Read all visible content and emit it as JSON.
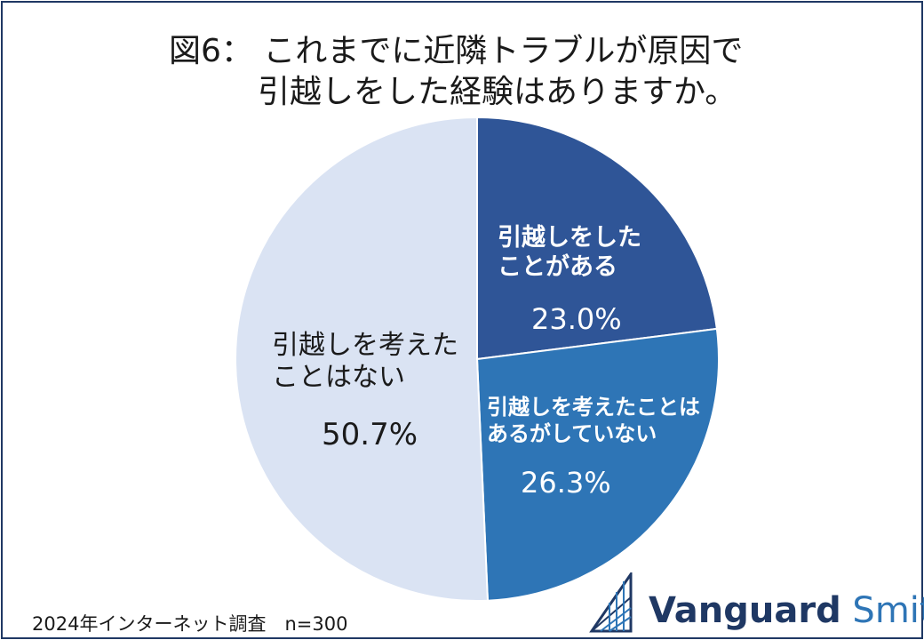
{
  "title_line1": "図6： これまでに近隣トラブルが原因で",
  "title_line2": "引越しをした経験はありますか。",
  "footer_note": "2024年インターネット調査　n=300",
  "brand": {
    "name_bold": "Vanguard",
    "name_light": "Smith"
  },
  "chart_data": {
    "type": "pie",
    "start_angle_deg": 0,
    "direction": "clockwise",
    "slices": [
      {
        "label_lines": [
          "引越しをした",
          "ことがある"
        ],
        "value": 23.0,
        "value_label": "23.0%",
        "color": "#2f5597",
        "text_color": "#ffffff"
      },
      {
        "label_lines": [
          "引越しを考えたことは",
          "あるがしていない"
        ],
        "value": 26.3,
        "value_label": "26.3%",
        "color": "#2e75b6",
        "text_color": "#ffffff"
      },
      {
        "label_lines": [
          "引越しを考えた",
          "ことはない"
        ],
        "value": 50.7,
        "value_label": "50.7%",
        "color": "#dae3f3",
        "text_color": "#1a1a1a"
      }
    ]
  }
}
